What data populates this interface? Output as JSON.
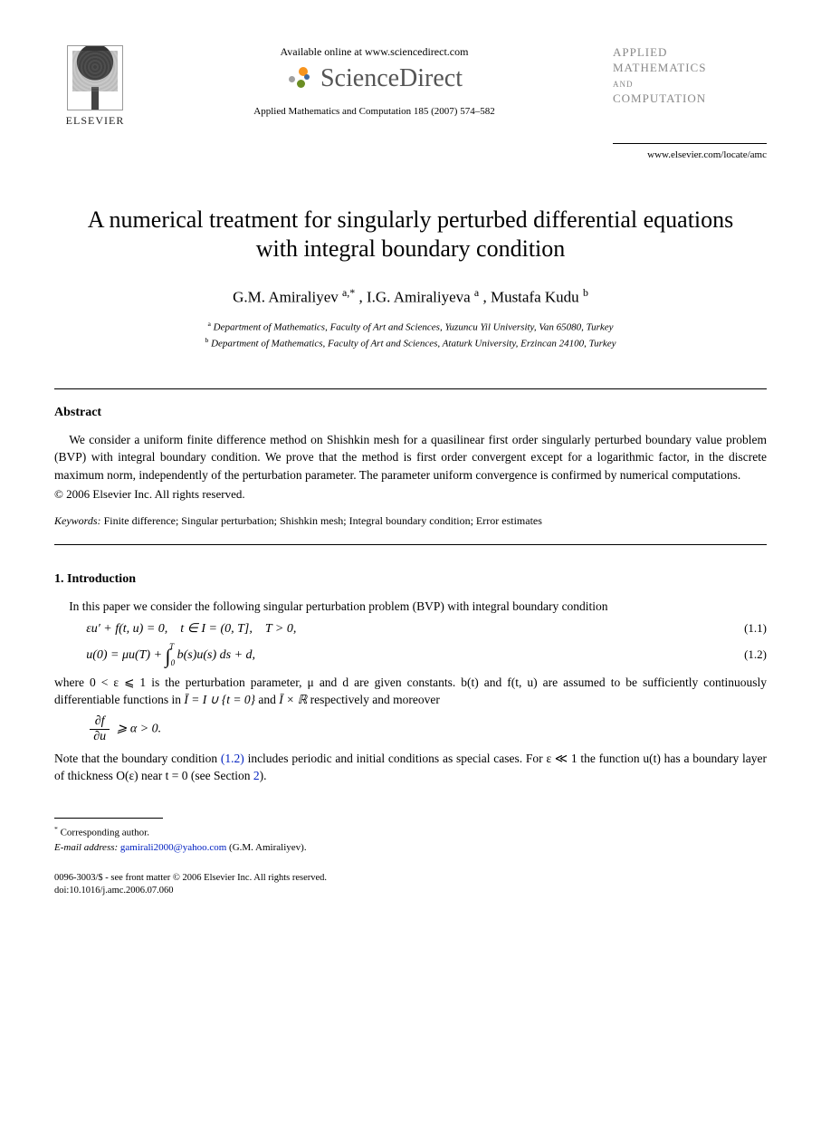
{
  "header": {
    "publisher_label": "ELSEVIER",
    "available_online": "Available online at www.sciencedirect.com",
    "sciencedirect": "ScienceDirect",
    "journal_ref": "Applied Mathematics and Computation 185 (2007) 574–582",
    "journal_brand_l1": "APPLIED",
    "journal_brand_l2": "MATHEMATICS",
    "journal_brand_and": "AND",
    "journal_brand_l3": "COMPUTATION",
    "locate_url": "www.elsevier.com/locate/amc"
  },
  "title": "A numerical treatment for singularly perturbed differential equations with integral boundary condition",
  "authors": {
    "a1": "G.M. Amiraliyev ",
    "a1_sup": "a,*",
    "a2": ", I.G. Amiraliyeva ",
    "a2_sup": "a",
    "a3": ", Mustafa Kudu ",
    "a3_sup": "b"
  },
  "affiliations": {
    "a": "Department of Mathematics, Faculty of Art and Sciences, Yuzuncu Yil University, Van 65080, Turkey",
    "b": "Department of Mathematics, Faculty of Art and Sciences, Ataturk University, Erzincan 24100, Turkey"
  },
  "abstract": {
    "heading": "Abstract",
    "text": "We consider a uniform finite difference method on Shishkin mesh for a quasilinear first order singularly perturbed boundary value problem (BVP) with integral boundary condition. We prove that the method is first order convergent except for a logarithmic factor, in the discrete maximum norm, independently of the perturbation parameter. The parameter uniform convergence is confirmed by numerical computations.",
    "copyright": "© 2006 Elsevier Inc. All rights reserved."
  },
  "keywords": {
    "label": "Keywords:",
    "text": " Finite difference; Singular perturbation; Shishkin mesh; Integral boundary condition; Error estimates"
  },
  "section1": {
    "heading": "1. Introduction",
    "p1": "In this paper we consider the following singular perturbation problem (BVP) with integral boundary condition",
    "eq11": "εu′ + f(t, u) = 0, t ∈ I = (0, T], T > 0,",
    "eq11_num": "(1.1)",
    "eq12_pre": "u(0) = μu(T) + ",
    "eq12_int_low": "0",
    "eq12_int_up": "T",
    "eq12_post": " b(s)u(s) ds + d,",
    "eq12_num": "(1.2)",
    "p2_a": "where 0 < ε ⩽ 1 is the perturbation parameter, μ and d are given constants. b(t) and f(t, u) are assumed to be sufficiently continuously differentiable functions in ",
    "p2_b": "Ī = I ∪ {t = 0}",
    "p2_c": " and ",
    "p2_d": "Ī × ℝ",
    "p2_e": " respectively and moreover",
    "ineq_num": "∂f",
    "ineq_den": "∂u",
    "ineq_tail": " ⩾ α > 0.",
    "p3_a": "Note that the boundary condition ",
    "p3_link": "(1.2)",
    "p3_b": " includes periodic and initial conditions as special cases. For ε ≪ 1 the function u(t) has a boundary layer of thickness O(ε) near t = 0 (see Section ",
    "p3_link2": "2",
    "p3_c": ")."
  },
  "footnotes": {
    "corr": "Corresponding author.",
    "email_label": "E-mail address: ",
    "email": "gamirali2000@yahoo.com",
    "email_tail": " (G.M. Amiraliyev)."
  },
  "doi": {
    "line1": "0096-3003/$ - see front matter © 2006 Elsevier Inc. All rights reserved.",
    "line2": "doi:10.1016/j.amc.2006.07.060"
  }
}
